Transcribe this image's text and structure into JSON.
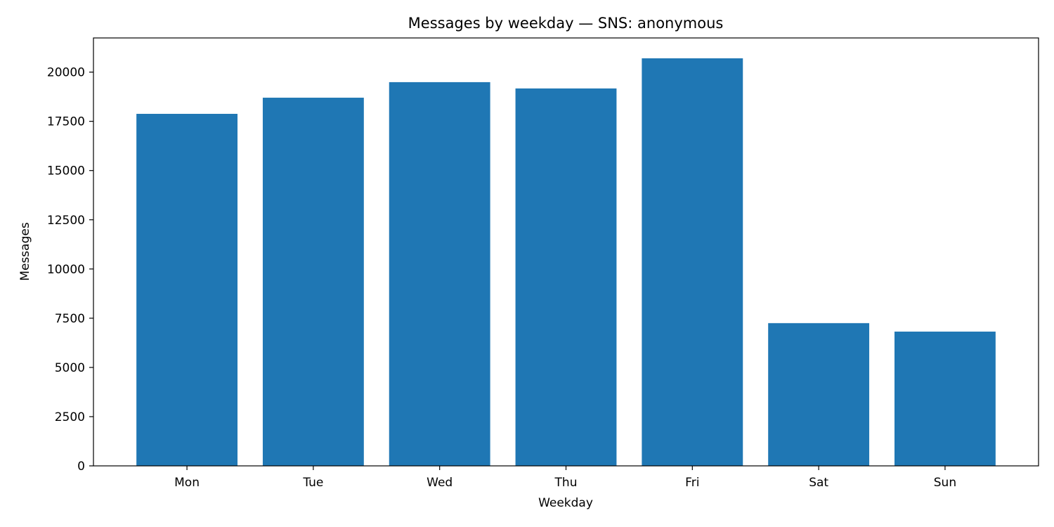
{
  "chart_data": {
    "type": "bar",
    "title": "Messages by weekday — SNS: anonymous",
    "xlabel": "Weekday",
    "ylabel": "Messages",
    "categories": [
      "Mon",
      "Tue",
      "Wed",
      "Thu",
      "Fri",
      "Sat",
      "Sun"
    ],
    "values": [
      17880,
      18700,
      19490,
      19170,
      20700,
      7250,
      6820
    ],
    "ylim": [
      0,
      21735
    ],
    "yticks": [
      0,
      2500,
      5000,
      7500,
      10000,
      12500,
      15000,
      17500,
      20000
    ],
    "grid": false,
    "legend": "none",
    "bar_color": "#1f77b4"
  }
}
